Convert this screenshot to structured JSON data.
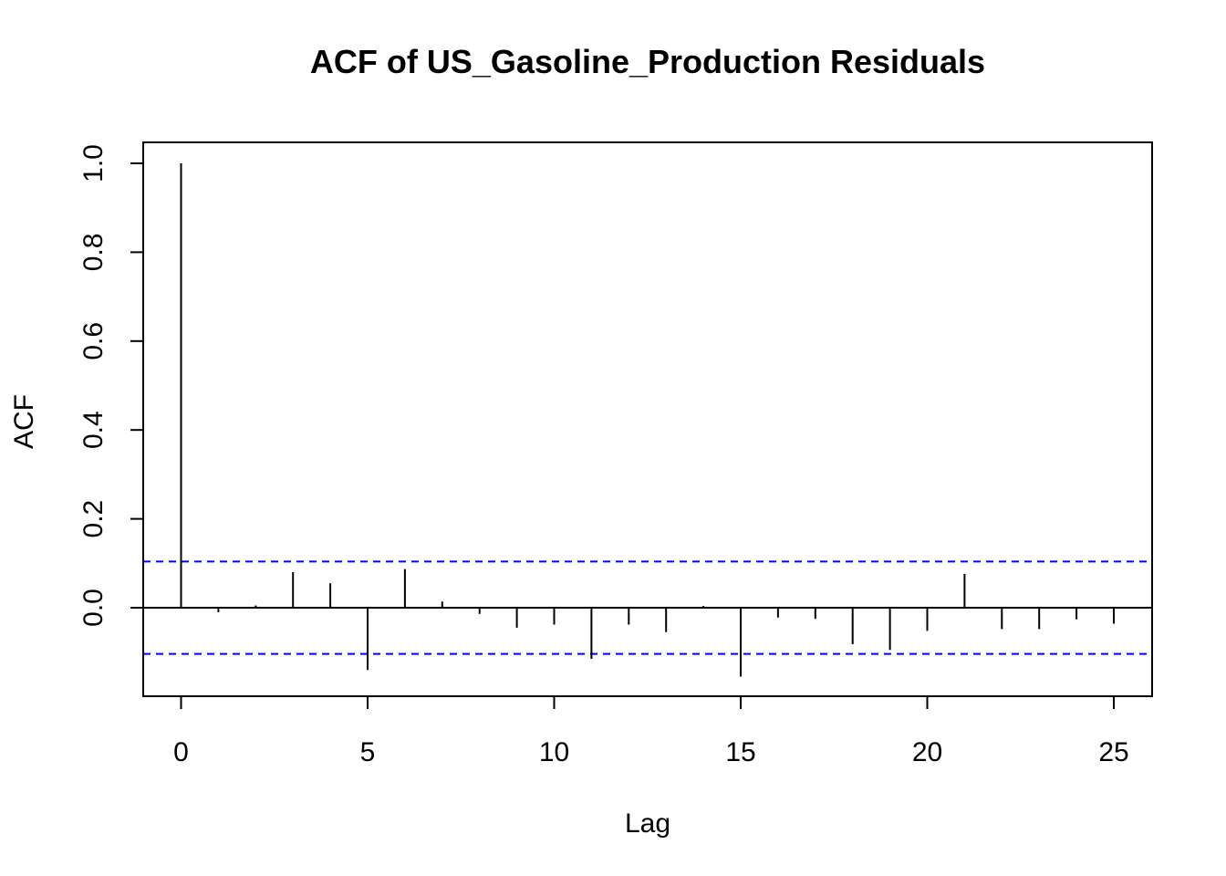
{
  "chart_data": {
    "type": "bar",
    "title": "ACF of US_Gasoline_Production Residuals",
    "xlabel": "Lag",
    "ylabel": "ACF",
    "xlim": [
      -1,
      26
    ],
    "ylim": [
      -0.2,
      1.05
    ],
    "x_ticks": [
      "0",
      "5",
      "10",
      "15",
      "20",
      "25"
    ],
    "y_ticks": [
      "0.0",
      "0.2",
      "0.4",
      "0.6",
      "0.8",
      "1.0"
    ],
    "lags": [
      0,
      1,
      2,
      3,
      4,
      5,
      6,
      7,
      8,
      9,
      10,
      11,
      12,
      13,
      14,
      15,
      16,
      17,
      18,
      19,
      20,
      21,
      22,
      23,
      24,
      25
    ],
    "acf": [
      1.0,
      -0.01,
      0.005,
      0.08,
      0.055,
      -0.14,
      0.087,
      0.014,
      -0.014,
      -0.045,
      -0.038,
      -0.115,
      -0.038,
      -0.055,
      0.004,
      -0.155,
      -0.022,
      -0.025,
      -0.082,
      -0.095,
      -0.052,
      0.076,
      -0.048,
      -0.048,
      -0.026,
      -0.036
    ],
    "confidence_bounds": [
      0.104,
      -0.104
    ],
    "grid": false,
    "colors": {
      "bars": "#000000",
      "confidence": "#0000ff",
      "zero_line": "#000000"
    }
  }
}
